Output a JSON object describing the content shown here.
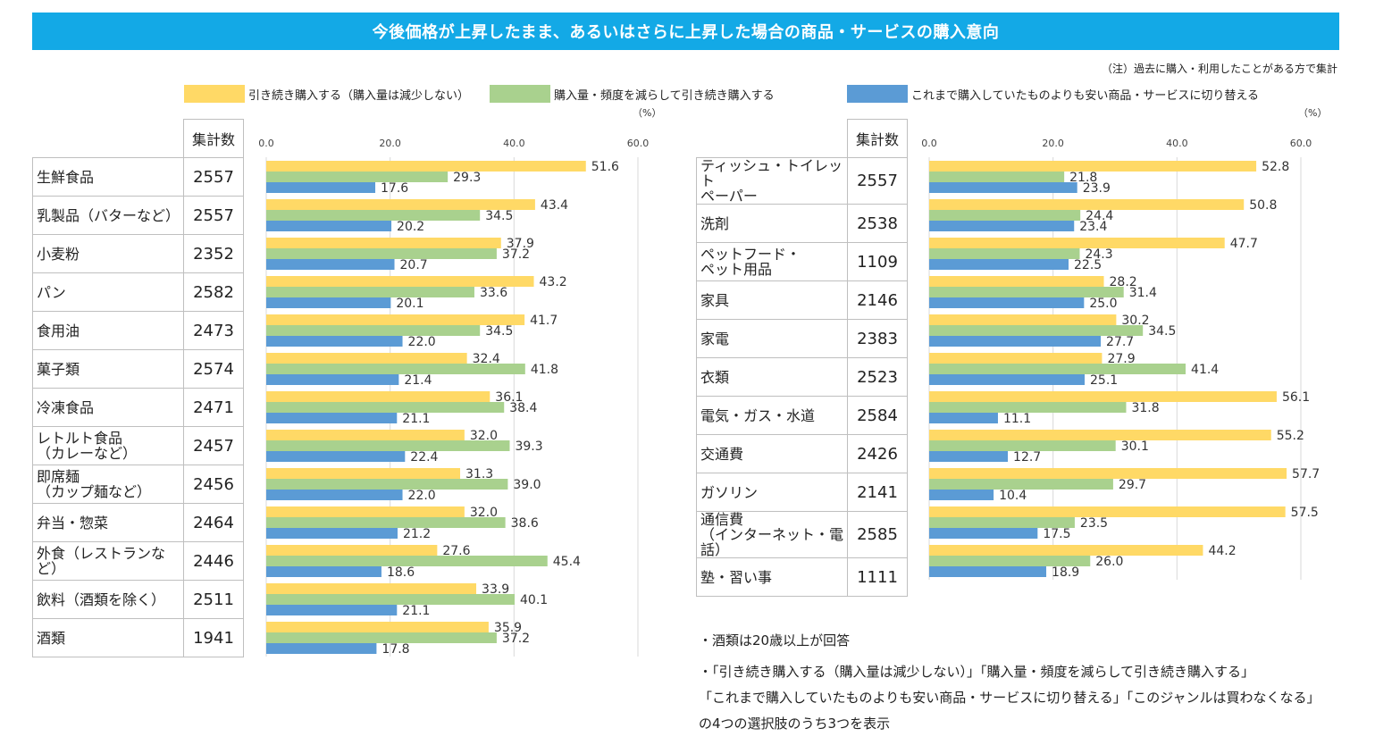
{
  "title": "今後価格が上昇したまま、あるいはさらに上昇した場合の商品・サービスの購入意向",
  "note_top": "（注）過去に購入・利用したことがある方で集計",
  "legend": [
    {
      "label": "引き続き購入する（購入量は減少しない）",
      "color": "#ffd966"
    },
    {
      "label": "購入量・頻度を減らして引き続き購入する",
      "color": "#a9d18e"
    },
    {
      "label": "これまで購入していたものよりも安い商品・サービスに切り替える",
      "color": "#5b9bd5"
    }
  ],
  "unit": "（%）",
  "count_header": "集計数",
  "footnotes": [
    "・酒類は20歳以上が回答",
    "・「引き続き購入する（購入量は減少しない）」「購入量・頻度を減らして引き続き購入する」",
    "「これまで購入していたものよりも安い商品・サービスに切り替える」「このジャンルは買わなくなる」",
    "の4つの選択肢のうち3つを表示"
  ],
  "chart_data": [
    {
      "type": "bar",
      "orientation": "horizontal",
      "xlim": [
        0,
        60
      ],
      "ticks": [
        "0.0",
        "20.0",
        "40.0",
        "60.0"
      ],
      "categories": [
        "生鮮食品",
        "乳製品（バターなど）",
        "小麦粉",
        "パン",
        "食用油",
        "菓子類",
        "冷凍食品",
        "レトルト食品\n（カレーなど）",
        "即席麺\n（カップ麺など）",
        "弁当・惣菜",
        "外食（レストランなど）",
        "飲料（酒類を除く）",
        "酒類"
      ],
      "counts": [
        "2557",
        "2557",
        "2352",
        "2582",
        "2473",
        "2574",
        "2471",
        "2457",
        "2456",
        "2464",
        "2446",
        "2511",
        "1941"
      ],
      "series": [
        {
          "name": "引き続き購入する（購入量は減少しない）",
          "values": [
            51.6,
            43.4,
            37.9,
            43.2,
            41.7,
            32.4,
            36.1,
            32.0,
            31.3,
            32.0,
            27.6,
            33.9,
            35.9
          ]
        },
        {
          "name": "購入量・頻度を減らして引き続き購入する",
          "values": [
            29.3,
            34.5,
            37.2,
            33.6,
            34.5,
            41.8,
            38.4,
            39.3,
            39.0,
            38.6,
            45.4,
            40.1,
            37.2
          ]
        },
        {
          "name": "これまで購入していたものよりも安い商品・サービスに切り替える",
          "values": [
            17.6,
            20.2,
            20.7,
            20.1,
            22.0,
            21.4,
            21.1,
            22.4,
            22.0,
            21.2,
            18.6,
            21.1,
            17.8
          ]
        }
      ]
    },
    {
      "type": "bar",
      "orientation": "horizontal",
      "xlim": [
        0,
        60
      ],
      "ticks": [
        "0.0",
        "20.0",
        "40.0",
        "60.0"
      ],
      "categories": [
        "ティッシュ・トイレット\nペーパー",
        "洗剤",
        "ペットフード・\nペット用品",
        "家具",
        "家電",
        "衣類",
        "電気・ガス・水道",
        "交通費",
        "ガソリン",
        "通信費\n（インターネット・電話）",
        "塾・習い事"
      ],
      "counts": [
        "2557",
        "2538",
        "1109",
        "2146",
        "2383",
        "2523",
        "2584",
        "2426",
        "2141",
        "2585",
        "1111"
      ],
      "series": [
        {
          "name": "引き続き購入する（購入量は減少しない）",
          "values": [
            52.8,
            50.8,
            47.7,
            28.2,
            30.2,
            27.9,
            56.1,
            55.2,
            57.7,
            57.5,
            44.2
          ]
        },
        {
          "name": "購入量・頻度を減らして引き続き購入する",
          "values": [
            21.8,
            24.4,
            24.3,
            31.4,
            34.5,
            41.4,
            31.8,
            30.1,
            29.7,
            23.5,
            26.0
          ]
        },
        {
          "name": "これまで購入していたものよりも安い商品・サービスに切り替える",
          "values": [
            23.9,
            23.4,
            22.5,
            25.0,
            27.7,
            25.1,
            11.1,
            12.7,
            10.4,
            17.5,
            18.9
          ]
        }
      ]
    }
  ]
}
